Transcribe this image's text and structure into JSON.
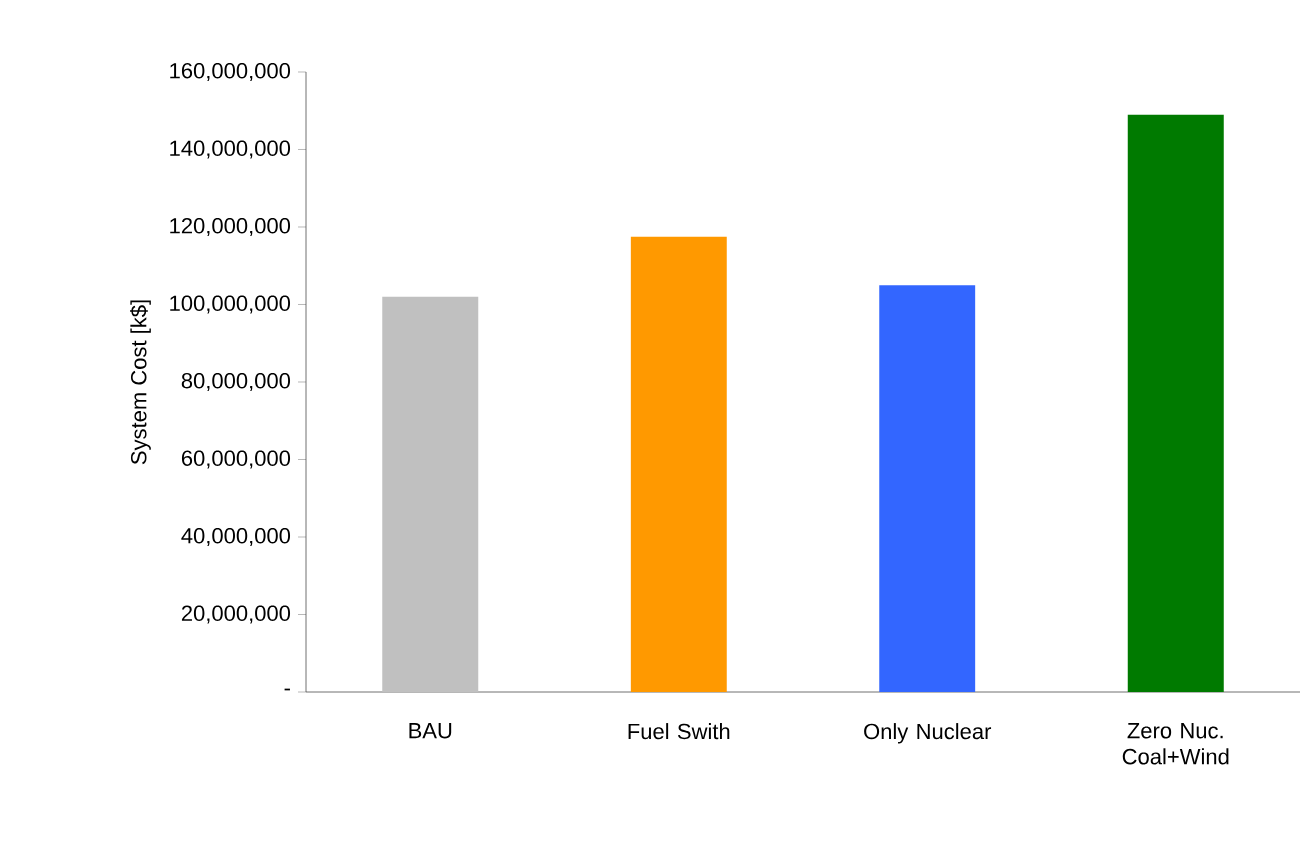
{
  "chart_data": {
    "type": "bar",
    "ylabel": "System Cost [k$]",
    "categories": [
      "BAU",
      "Fuel Swith",
      "Only Nuclear",
      "Zero Nuc. Coal+Wind"
    ],
    "values": [
      102000000,
      117500000,
      105000000,
      149000000
    ],
    "colors": [
      "#c0c0c0",
      "#ff9900",
      "#3366ff",
      "#007a00"
    ],
    "ylim": [
      0,
      160000000
    ],
    "yticks": [
      {
        "value": 0,
        "label": "-"
      },
      {
        "value": 20000000,
        "label": "20,000,000"
      },
      {
        "value": 40000000,
        "label": "40,000,000"
      },
      {
        "value": 60000000,
        "label": "60,000,000"
      },
      {
        "value": 80000000,
        "label": "80,000,000"
      },
      {
        "value": 100000000,
        "label": "100,000,000"
      },
      {
        "value": 120000000,
        "label": "120,000,000"
      },
      {
        "value": 140000000,
        "label": "140,000,000"
      },
      {
        "value": 160000000,
        "label": "160,000,000"
      }
    ],
    "grid": false
  }
}
